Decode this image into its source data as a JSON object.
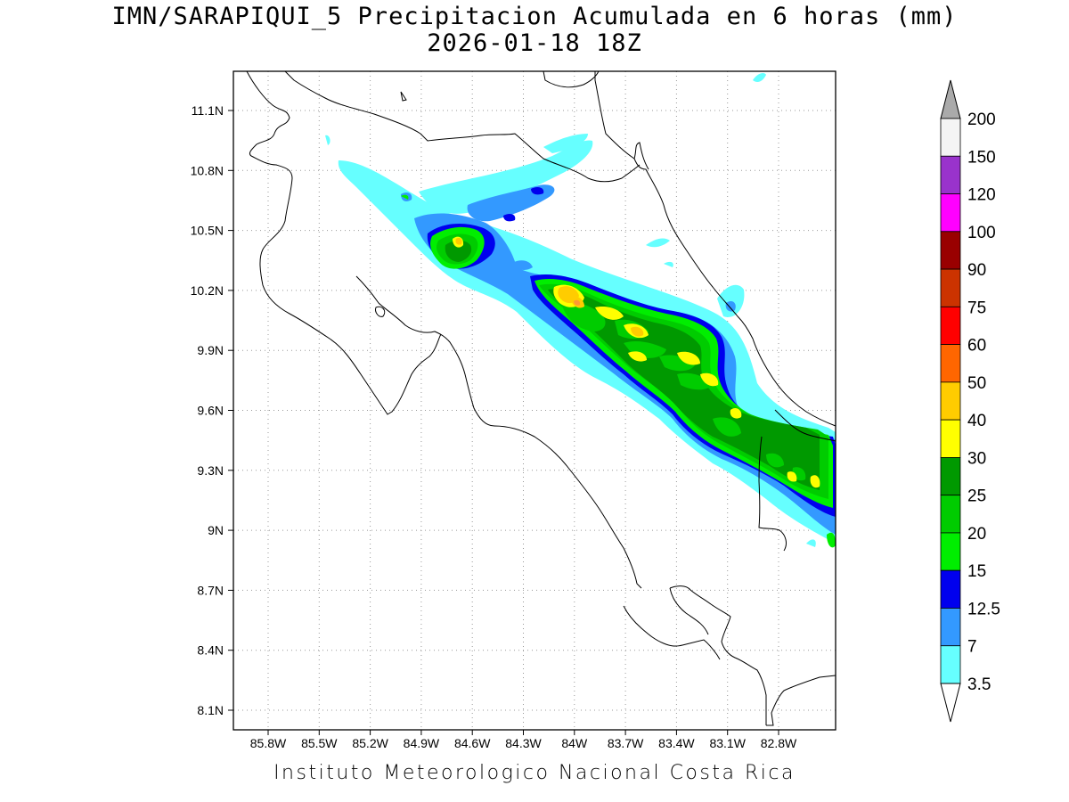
{
  "title": {
    "line1": "IMN/SARAPIQUI_5 Precipitacion Acumulada en 6 horas (mm)",
    "line2": "2026-01-18 18Z"
  },
  "footer": "Instituto Meteorologico Nacional Costa Rica",
  "axes": {
    "lon_ticks": [
      "85.8W",
      "85.5W",
      "85.2W",
      "84.9W",
      "84.6W",
      "84.3W",
      "84W",
      "83.7W",
      "83.4W",
      "83.1W",
      "82.8W"
    ],
    "lat_ticks": [
      "11.1N",
      "10.8N",
      "10.5N",
      "10.2N",
      "9.9N",
      "9.6N",
      "9.3N",
      "9N",
      "8.7N",
      "8.4N",
      "8.1N"
    ]
  },
  "colorbar": {
    "labels": [
      "3.5",
      "7",
      "12.5",
      "15",
      "20",
      "25",
      "30",
      "40",
      "50",
      "60",
      "75",
      "90",
      "100",
      "120",
      "150",
      "200"
    ],
    "colors": [
      "#66ffff",
      "#3399ff",
      "#0000ee",
      "#00ee00",
      "#00cc00",
      "#009900",
      "#ffff00",
      "#ffcc00",
      "#ff6600",
      "#ff0000",
      "#cc3300",
      "#990000",
      "#ff00ff",
      "#9933cc",
      "#f4f4f4",
      "#aaaaaa"
    ]
  },
  "colors": {
    "c3_5": "#66ffff",
    "c7": "#3399ff",
    "c12_5": "#0000ee",
    "c15": "#00ee00",
    "c20": "#00cc00",
    "c25": "#009900",
    "c30": "#ffff00",
    "c40": "#ffcc00",
    "c50": "#ff6600"
  }
}
